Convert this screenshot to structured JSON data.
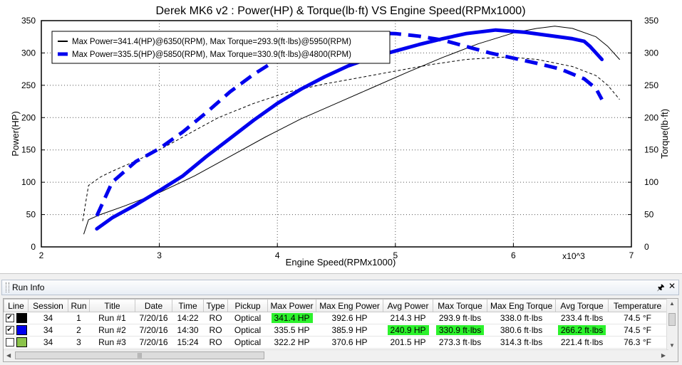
{
  "chart_data": {
    "type": "line",
    "title": "Derek MK6 v2 : Power(HP) & Torque(lb·ft) VS Engine Speed(RPMx1000)",
    "xlabel": "Engine Speed(RPMx1000)",
    "ylabel_left": "Power(HP)",
    "ylabel_right": "Torque(lb·ft)",
    "x_multiplier_label": "x10^3",
    "xlim": [
      2,
      7
    ],
    "ylim": [
      0,
      350
    ],
    "xticks": [
      "2",
      "3",
      "4",
      "5",
      "6",
      "7"
    ],
    "yticks": [
      "0",
      "50",
      "100",
      "150",
      "200",
      "250",
      "300",
      "350"
    ],
    "grid": true,
    "legend_position": "top-left",
    "series": [
      {
        "name": "Max Power=341.4(HP)@6350(RPM), Max Torque=293.9(ft·lbs)@5950(RPM)",
        "color": "#000000",
        "power": [
          [
            2.36,
            20
          ],
          [
            2.4,
            42
          ],
          [
            2.5,
            50
          ],
          [
            2.7,
            63
          ],
          [
            3.0,
            84
          ],
          [
            3.3,
            110
          ],
          [
            3.6,
            140
          ],
          [
            3.9,
            170
          ],
          [
            4.2,
            198
          ],
          [
            4.5,
            222
          ],
          [
            4.8,
            246
          ],
          [
            5.1,
            270
          ],
          [
            5.4,
            293
          ],
          [
            5.7,
            314
          ],
          [
            6.0,
            331
          ],
          [
            6.2,
            338
          ],
          [
            6.35,
            341.4
          ],
          [
            6.5,
            338
          ],
          [
            6.7,
            325
          ],
          [
            6.8,
            310
          ],
          [
            6.9,
            290
          ]
        ],
        "torque": [
          [
            2.35,
            40
          ],
          [
            2.4,
            95
          ],
          [
            2.5,
            108
          ],
          [
            2.6,
            117
          ],
          [
            2.8,
            133
          ],
          [
            3.0,
            150
          ],
          [
            3.2,
            170
          ],
          [
            3.5,
            200
          ],
          [
            3.8,
            222
          ],
          [
            4.1,
            240
          ],
          [
            4.4,
            252
          ],
          [
            4.7,
            262
          ],
          [
            5.0,
            272
          ],
          [
            5.3,
            282
          ],
          [
            5.6,
            290
          ],
          [
            5.95,
            293.9
          ],
          [
            6.2,
            290
          ],
          [
            6.5,
            279
          ],
          [
            6.7,
            265
          ],
          [
            6.8,
            250
          ],
          [
            6.9,
            228
          ]
        ]
      },
      {
        "name": "Max Power=335.5(HP)@5850(RPM), Max Torque=330.9(ft·lbs)@4800(RPM)",
        "color": "#0000ee",
        "power": [
          [
            2.47,
            28
          ],
          [
            2.6,
            45
          ],
          [
            2.8,
            65
          ],
          [
            3.0,
            87
          ],
          [
            3.2,
            110
          ],
          [
            3.4,
            140
          ],
          [
            3.6,
            168
          ],
          [
            3.8,
            196
          ],
          [
            4.0,
            222
          ],
          [
            4.2,
            244
          ],
          [
            4.4,
            263
          ],
          [
            4.6,
            280
          ],
          [
            4.8,
            293
          ],
          [
            5.0,
            303
          ],
          [
            5.2,
            313
          ],
          [
            5.4,
            322
          ],
          [
            5.6,
            330
          ],
          [
            5.85,
            335.5
          ],
          [
            6.1,
            332
          ],
          [
            6.3,
            327
          ],
          [
            6.5,
            322
          ],
          [
            6.6,
            318
          ],
          [
            6.65,
            310
          ],
          [
            6.75,
            290
          ]
        ],
        "torque": [
          [
            2.47,
            48
          ],
          [
            2.6,
            100
          ],
          [
            2.8,
            132
          ],
          [
            3.0,
            152
          ],
          [
            3.2,
            178
          ],
          [
            3.4,
            208
          ],
          [
            3.6,
            240
          ],
          [
            3.8,
            267
          ],
          [
            4.0,
            290
          ],
          [
            4.2,
            308
          ],
          [
            4.4,
            320
          ],
          [
            4.6,
            328
          ],
          [
            4.8,
            330.9
          ],
          [
            5.0,
            330
          ],
          [
            5.2,
            326
          ],
          [
            5.4,
            320
          ],
          [
            5.6,
            310
          ],
          [
            5.8,
            300
          ],
          [
            6.0,
            292
          ],
          [
            6.2,
            284
          ],
          [
            6.4,
            275
          ],
          [
            6.6,
            260
          ],
          [
            6.7,
            245
          ],
          [
            6.75,
            228
          ]
        ]
      }
    ]
  },
  "panel": {
    "title": "Run Info",
    "pin_icon": "pin-icon",
    "close_icon": "close-icon"
  },
  "table": {
    "columns": [
      "Line",
      "Session",
      "Run",
      "Title",
      "Date",
      "Time",
      "Type",
      "Pickup",
      "Max Power",
      "Max Eng Power",
      "Avg Power",
      "Max Torque",
      "Max Eng Torque",
      "Avg Torque",
      "Temperature"
    ],
    "highlight_color": "#2cf22c",
    "rows": [
      {
        "checked": true,
        "line_color": "#000000",
        "session": "34",
        "run": "1",
        "title": "Run #1",
        "date": "7/20/16",
        "time": "14:22",
        "type": "RO",
        "pickup": "Optical",
        "max_power": "341.4 HP",
        "max_eng_power": "392.6 HP",
        "avg_power": "214.3 HP",
        "max_torque": "293.9 ft·lbs",
        "max_eng_torque": "338.0 ft·lbs",
        "avg_torque": "233.4 ft·lbs",
        "temperature": "74.5 °F",
        "hl": [
          "max_power"
        ]
      },
      {
        "checked": true,
        "line_color": "#0000ee",
        "session": "34",
        "run": "2",
        "title": "Run #2",
        "date": "7/20/16",
        "time": "14:30",
        "type": "RO",
        "pickup": "Optical",
        "max_power": "335.5 HP",
        "max_eng_power": "385.9 HP",
        "avg_power": "240.9 HP",
        "max_torque": "330.9 ft·lbs",
        "max_eng_torque": "380.6 ft·lbs",
        "avg_torque": "266.2 ft·lbs",
        "temperature": "74.5 °F",
        "hl": [
          "avg_power",
          "max_torque",
          "avg_torque"
        ]
      },
      {
        "checked": false,
        "line_color": "#8bc34a",
        "session": "34",
        "run": "3",
        "title": "Run #3",
        "date": "7/20/16",
        "time": "15:24",
        "type": "RO",
        "pickup": "Optical",
        "max_power": "322.2 HP",
        "max_eng_power": "370.6 HP",
        "avg_power": "201.5 HP",
        "max_torque": "273.3 ft·lbs",
        "max_eng_torque": "314.3 ft·lbs",
        "avg_torque": "221.4 ft·lbs",
        "temperature": "76.3 °F",
        "hl": []
      }
    ]
  }
}
